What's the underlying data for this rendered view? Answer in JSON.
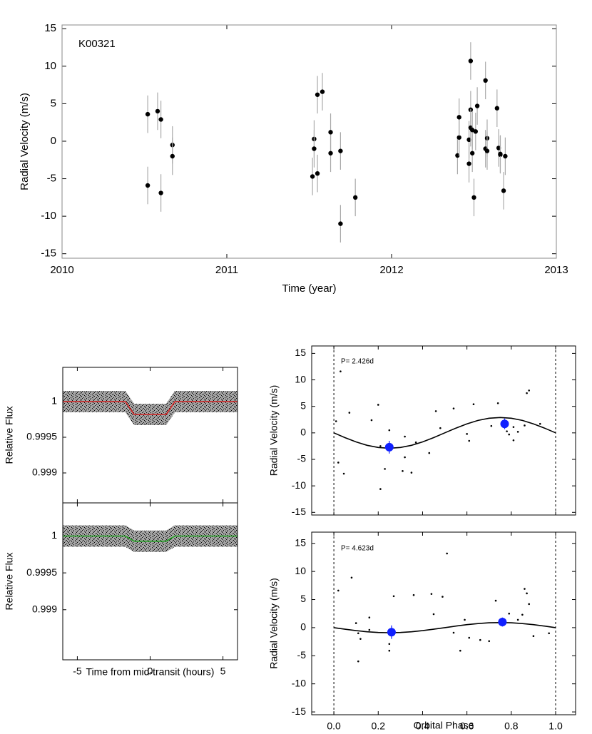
{
  "chart_data": [
    {
      "type": "scatter",
      "annotation": "K00321",
      "xlabel": "Time (year)",
      "ylabel": "Radial Velocity (m/s)",
      "xlim": [
        2010,
        2013
      ],
      "ylim": [
        -15.6,
        15.5
      ],
      "xticks": [
        2010,
        2011,
        2012,
        2013
      ],
      "yticks": [
        -15,
        -10,
        -5,
        0,
        5,
        10,
        15
      ],
      "series": [
        {
          "mode": "markers",
          "color": "#000000",
          "error_color": "#aaaaaa",
          "x": [
            2010.52,
            2010.52,
            2010.58,
            2010.6,
            2010.6,
            2010.67,
            2010.67,
            2011.53,
            2011.53,
            2011.52,
            2011.55,
            2011.55,
            2011.58,
            2011.63,
            2011.63,
            2011.69,
            2011.69,
            2011.78,
            2012.4,
            2012.41,
            2012.41,
            2012.47,
            2012.47,
            2012.48,
            2012.48,
            2012.48,
            2012.49,
            2012.49,
            2012.5,
            2012.51,
            2012.52,
            2012.57,
            2012.57,
            2012.58,
            2012.58,
            2012.64,
            2012.65,
            2012.66,
            2012.66,
            2012.68,
            2012.69
          ],
          "values": [
            3.6,
            -5.9,
            4.0,
            2.9,
            -6.9,
            -0.5,
            -2.0,
            0.3,
            -1.0,
            -4.7,
            6.2,
            -4.3,
            6.6,
            1.2,
            -1.6,
            -1.3,
            -11.0,
            -7.5,
            -1.9,
            0.5,
            3.2,
            -3.0,
            0.2,
            4.2,
            1.8,
            10.7,
            1.5,
            -1.6,
            -7.5,
            1.3,
            4.7,
            8.1,
            -1.0,
            0.4,
            -1.3,
            4.4,
            -0.9,
            -1.8,
            -1.7,
            -6.6,
            -2.0
          ],
          "errors": [
            2.5,
            2.5,
            2.5,
            2.5,
            2.5,
            2.5,
            2.5,
            2.5,
            2.5,
            2.5,
            2.5,
            2.5,
            2.5,
            2.5,
            2.5,
            2.5,
            2.5,
            2.5,
            2.5,
            2.5,
            2.5,
            2.5,
            2.5,
            2.5,
            2.5,
            2.5,
            2.5,
            2.5,
            2.5,
            2.5,
            2.5,
            2.5,
            2.5,
            2.5,
            2.5,
            2.5,
            2.5,
            2.5,
            2.5,
            2.5,
            2.5
          ]
        }
      ]
    },
    {
      "type": "line",
      "ylabel": "Relative Flux",
      "xlim": [
        -6,
        6
      ],
      "ylim": [
        0.99858,
        1.00048
      ],
      "xticks": [
        -5,
        0,
        5
      ],
      "show_xtick_labels": false,
      "yticks": [
        1,
        0.9995,
        0.999
      ],
      "series": [
        {
          "mode": "line",
          "color": "#d02020",
          "x": [
            -6,
            -1.7,
            -1.1,
            1.1,
            1.7,
            6
          ],
          "values": [
            1,
            1,
            0.99982,
            0.99982,
            1,
            1
          ]
        }
      ]
    },
    {
      "type": "line",
      "ylabel": "Relative Flux",
      "xlabel": "Time from mid-transit (hours)",
      "xlim": [
        -6,
        6
      ],
      "ylim": [
        0.99832,
        1.00045
      ],
      "xticks": [
        -5,
        0,
        5
      ],
      "show_xtick_labels": true,
      "yticks": [
        1,
        0.9995,
        0.999
      ],
      "series": [
        {
          "mode": "line",
          "color": "#20a020",
          "x": [
            -6,
            -1.7,
            -1.1,
            1.1,
            1.7,
            6
          ],
          "values": [
            1,
            1,
            0.99993,
            0.99993,
            1,
            1
          ]
        }
      ]
    },
    {
      "type": "scatter",
      "annotation": "P= 2.426d",
      "ylabel": "Radial Velocity (m/s)",
      "xlim": [
        -0.1,
        1.09
      ],
      "ylim": [
        -15.5,
        16.4
      ],
      "xticks": [
        0,
        0.2,
        0.4,
        0.6,
        0.8,
        1
      ],
      "show_xtick_labels": false,
      "yticks": [
        -15,
        -10,
        -5,
        0,
        5,
        10,
        15
      ],
      "vlines": [
        0,
        1
      ],
      "series": [
        {
          "mode": "dots",
          "color": "#000000",
          "x": [
            0.03,
            0.01,
            0.02,
            0.045,
            0.07,
            0.17,
            0.21,
            0.2,
            0.21,
            0.23,
            0.25,
            0.32,
            0.31,
            0.35,
            0.32,
            0.37,
            0.43,
            0.46,
            0.48,
            0.54,
            0.6,
            0.61,
            0.63,
            0.71,
            0.74,
            0.76,
            0.78,
            0.79,
            0.81,
            0.81,
            0.83,
            0.86,
            0.87,
            0.88,
            0.93
          ],
          "values": [
            11.6,
            2.2,
            -5.6,
            -7.7,
            3.8,
            2.4,
            -2.5,
            5.3,
            -10.6,
            -6.8,
            0.5,
            -4.6,
            -7.2,
            -7.5,
            -0.7,
            -1.8,
            -3.8,
            4.1,
            0.9,
            4.6,
            -0.2,
            -1.5,
            5.4,
            1.3,
            5.6,
            1.8,
            0.3,
            -0.3,
            1.1,
            -1.4,
            0.2,
            1.4,
            7.5,
            8.0,
            1.7
          ]
        },
        {
          "mode": "line",
          "color": "#000000",
          "x": [
            0,
            0.05,
            0.1,
            0.15,
            0.2,
            0.25,
            0.3,
            0.35,
            0.4,
            0.45,
            0.5,
            0.55,
            0.6,
            0.65,
            0.7,
            0.75,
            0.8,
            0.85,
            0.9,
            0.95,
            1
          ],
          "values": [
            0,
            -0.9,
            -1.7,
            -2.35,
            -2.76,
            -2.9,
            -2.76,
            -2.35,
            -1.7,
            -0.9,
            0,
            0.9,
            1.7,
            2.35,
            2.76,
            2.9,
            2.76,
            2.35,
            1.7,
            0.9,
            0
          ]
        },
        {
          "mode": "markers",
          "color": "#1020ff",
          "error_color": "#1020ff",
          "x": [
            0.25,
            0.77
          ],
          "values": [
            -2.7,
            1.7
          ],
          "errors": [
            1.2,
            1.0
          ]
        }
      ]
    },
    {
      "type": "scatter",
      "annotation": "P= 4.623d",
      "ylabel": "Radial Velocity (m/s)",
      "xlabel": "Orbital Phase",
      "xlim": [
        -0.1,
        1.09
      ],
      "ylim": [
        -15.5,
        17.0
      ],
      "xticks": [
        {
          "value": 0,
          "label": "0.0"
        },
        0.2,
        0.4,
        0.6,
        0.8,
        {
          "value": 1,
          "label": "1.0"
        }
      ],
      "show_xtick_labels": true,
      "yticks": [
        -15,
        -10,
        -5,
        0,
        5,
        10,
        15
      ],
      "vlines": [
        0,
        1
      ],
      "series": [
        {
          "mode": "dots",
          "color": "#000000",
          "x": [
            0.02,
            0.08,
            0.1,
            0.11,
            0.12,
            0.11,
            0.16,
            0.16,
            0.25,
            0.25,
            0.27,
            0.36,
            0.44,
            0.45,
            0.49,
            0.51,
            0.54,
            0.57,
            0.59,
            0.61,
            0.66,
            0.7,
            0.73,
            0.76,
            0.79,
            0.83,
            0.85,
            0.86,
            0.87,
            0.88,
            0.9,
            0.97
          ],
          "values": [
            6.6,
            8.9,
            0.8,
            -1.0,
            -2.0,
            -6.0,
            1.8,
            -0.4,
            -2.9,
            -4.1,
            5.6,
            5.8,
            6.0,
            2.4,
            5.5,
            13.2,
            -0.9,
            -4.1,
            1.4,
            -1.8,
            -2.2,
            -2.4,
            4.8,
            0.6,
            2.5,
            1.4,
            2.3,
            6.9,
            6.1,
            4.2,
            -1.5,
            -1.0
          ]
        },
        {
          "mode": "line",
          "color": "#000000",
          "x": [
            0,
            0.05,
            0.1,
            0.15,
            0.2,
            0.25,
            0.3,
            0.35,
            0.4,
            0.45,
            0.5,
            0.55,
            0.6,
            0.65,
            0.7,
            0.75,
            0.8,
            0.85,
            0.9,
            0.95,
            1
          ],
          "values": [
            0,
            -0.28,
            -0.53,
            -0.73,
            -0.86,
            -0.9,
            -0.86,
            -0.73,
            -0.53,
            -0.28,
            0,
            0.28,
            0.53,
            0.73,
            0.86,
            0.9,
            0.86,
            0.73,
            0.53,
            0.28,
            0
          ]
        },
        {
          "mode": "markers",
          "color": "#1020ff",
          "error_color": "#1020ff",
          "x": [
            0.26,
            0.76
          ],
          "values": [
            -0.8,
            1.0
          ],
          "errors": [
            1.2,
            0.8
          ]
        }
      ]
    }
  ]
}
